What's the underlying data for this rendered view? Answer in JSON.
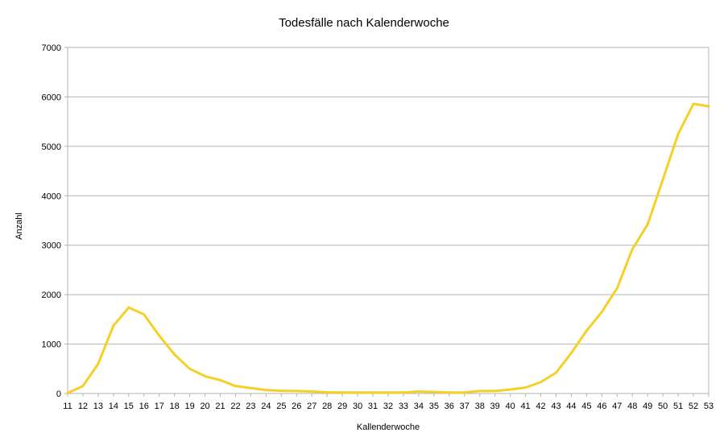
{
  "chart_data": {
    "type": "line",
    "title": "Todesfälle nach Kalenderwoche",
    "xlabel": "Kallenderwoche",
    "ylabel": "Anzahl",
    "ylim": [
      0,
      7000
    ],
    "yticks": [
      0,
      1000,
      2000,
      3000,
      4000,
      5000,
      6000,
      7000
    ],
    "grid": true,
    "legend": "none",
    "categories": [
      "11",
      "12",
      "13",
      "14",
      "15",
      "16",
      "17",
      "18",
      "19",
      "20",
      "21",
      "22",
      "23",
      "24",
      "25",
      "26",
      "27",
      "28",
      "29",
      "30",
      "31",
      "32",
      "33",
      "34",
      "35",
      "36",
      "37",
      "38",
      "39",
      "40",
      "41",
      "42",
      "43",
      "44",
      "45",
      "46",
      "47",
      "48",
      "49",
      "50",
      "51",
      "52",
      "53"
    ],
    "series": [
      {
        "color": "#f5d027",
        "values": [
          10,
          150,
          600,
          1370,
          1740,
          1600,
          1170,
          790,
          500,
          350,
          270,
          150,
          110,
          70,
          55,
          50,
          40,
          25,
          20,
          20,
          20,
          20,
          20,
          40,
          30,
          20,
          20,
          50,
          50,
          80,
          120,
          230,
          420,
          820,
          1270,
          1650,
          2130,
          2920,
          3420,
          4330,
          5250,
          5860,
          5810
        ]
      }
    ]
  }
}
